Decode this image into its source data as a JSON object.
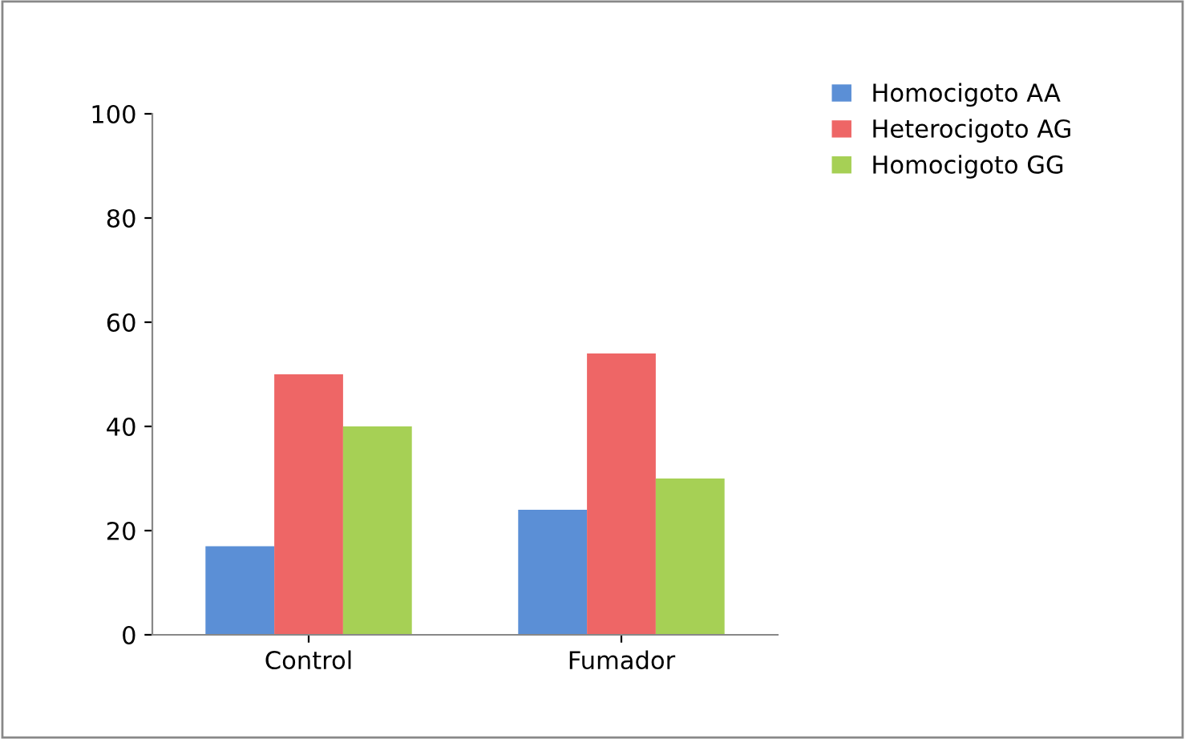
{
  "chart_data": {
    "type": "bar",
    "categories": [
      "Control",
      "Fumador"
    ],
    "series": [
      {
        "name": "Homocigoto AA",
        "color": "#5b8fd6",
        "values": [
          17,
          24
        ]
      },
      {
        "name": "Heterocigoto AG",
        "color": "#ee6666",
        "values": [
          50,
          54
        ]
      },
      {
        "name": "Homocigoto GG",
        "color": "#a6d055",
        "values": [
          40,
          30
        ]
      }
    ],
    "ylim": [
      0,
      100
    ],
    "yticks": [
      0,
      20,
      40,
      60,
      80,
      100
    ],
    "grid": false,
    "legend": "top right"
  }
}
